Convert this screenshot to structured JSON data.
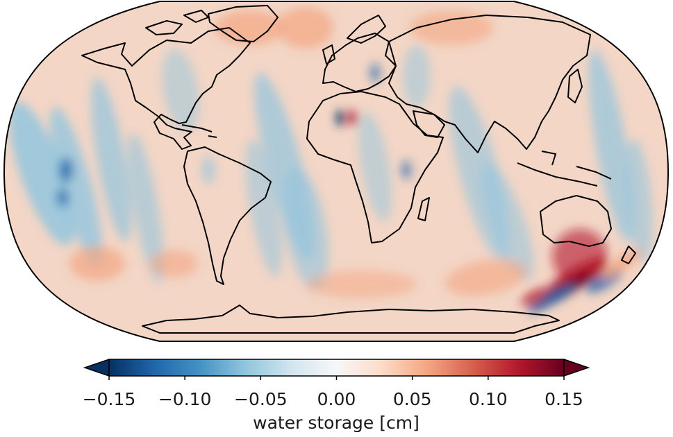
{
  "map": {
    "projection": "Robinson",
    "colormap": "RdBu_r",
    "features": [
      "coastlines"
    ]
  },
  "colorbar": {
    "label": "water storage [cm]",
    "orientation": "horizontal",
    "extend": "both",
    "range": [
      -0.15,
      0.15
    ],
    "ticks": [
      -0.15,
      -0.1,
      -0.05,
      0.0,
      0.05,
      0.1,
      0.15
    ],
    "tick_labels": [
      "−0.15",
      "−0.10",
      "−0.05",
      "0.00",
      "0.05",
      "0.10",
      "0.15"
    ],
    "colors": {
      "min": "#053061",
      "low": "#2166ac",
      "midlow": "#92c5de",
      "mid": "#f7f7f7",
      "midhigh": "#f4a582",
      "high": "#b2182b",
      "max": "#67001f"
    }
  }
}
